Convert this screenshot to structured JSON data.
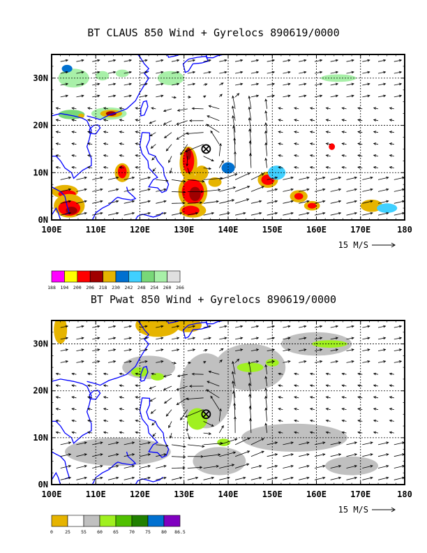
{
  "panels": [
    {
      "title": "BT CLAUS 850 Wind + Gyrelocs 890619/0000",
      "x_ticks": [
        "100E",
        "110E",
        "120E",
        "130E",
        "140E",
        "150E",
        "160E",
        "170E",
        "180"
      ],
      "y_ticks": [
        "0N",
        "10N",
        "20N",
        "30N"
      ],
      "vector_ref": "15 M/S",
      "colorbar": {
        "labels": [
          "188",
          "194",
          "200",
          "206",
          "218",
          "230",
          "242",
          "248",
          "254",
          "260",
          "266"
        ],
        "colors": [
          "#ff00ff",
          "#ffff00",
          "#ff0000",
          "#a00000",
          "#e6b400",
          "#0070d0",
          "#40d0ff",
          "#78d878",
          "#a8f0a8",
          "#e0e0e0"
        ]
      },
      "gyre_marker": {
        "lon": 135,
        "lat": 15
      }
    },
    {
      "title": "BT Pwat 850 Wind + Gyrelocs 890619/0000",
      "x_ticks": [
        "100E",
        "110E",
        "120E",
        "130E",
        "140E",
        "150E",
        "160E",
        "170E",
        "180"
      ],
      "y_ticks": [
        "0N",
        "10N",
        "20N",
        "30N"
      ],
      "vector_ref": "15 M/S",
      "colorbar": {
        "labels": [
          "0",
          "25",
          "55",
          "60",
          "65",
          "70",
          "75",
          "80",
          "86.5"
        ],
        "colors": [
          "#e6b400",
          "#ffffff",
          "#c0c0c0",
          "#a0f020",
          "#50c000",
          "#208000",
          "#0070d0",
          "#8000c0"
        ]
      },
      "gyre_marker": {
        "lon": 135,
        "lat": 15
      }
    }
  ]
}
